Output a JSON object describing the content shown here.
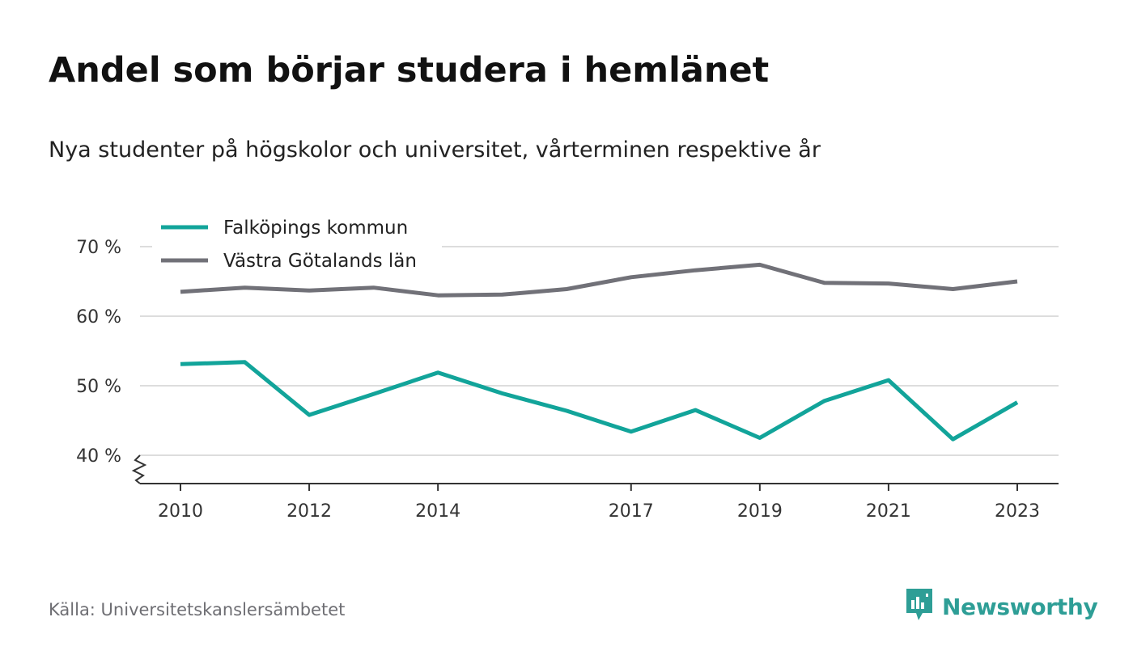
{
  "title": "Andel som börjar studera i hemlänet",
  "subtitle": "Nya studenter på högskolor och universitet, vårterminen respektive år",
  "source": "Källa: Universitetskanslersämbetet",
  "brand": {
    "name": "Newsworthy",
    "icon": "newsworthy-logo-icon"
  },
  "colors": {
    "series1": "#12a49a",
    "series2": "#717178",
    "grid": "#dddddd",
    "brand": "#2e9e96"
  },
  "chart_data": {
    "type": "line",
    "title": "Andel som börjar studera i hemlänet",
    "subtitle": "Nya studenter på högskolor och universitet, vårterminen respektive år",
    "xlabel": "",
    "ylabel": "",
    "x": [
      2010,
      2011,
      2012,
      2013,
      2014,
      2015,
      2016,
      2017,
      2018,
      2019,
      2020,
      2021,
      2022,
      2023
    ],
    "x_ticks": [
      2010,
      2012,
      2014,
      2017,
      2019,
      2021,
      2023
    ],
    "y_ticks": [
      40,
      50,
      60,
      70
    ],
    "y_tick_labels": [
      "40 %",
      "50 %",
      "60 %",
      "70 %"
    ],
    "ylim": [
      40,
      70
    ],
    "y_axis_break": true,
    "grid": "horizontal",
    "legend_position": "top-left",
    "series": [
      {
        "name": "Falköpings kommun",
        "color": "#12a49a",
        "values": [
          53.1,
          53.4,
          45.8,
          48.8,
          51.9,
          48.9,
          46.4,
          43.4,
          46.5,
          42.5,
          47.8,
          50.8,
          42.3,
          47.6
        ]
      },
      {
        "name": "Västra Götalands län",
        "color": "#717178",
        "values": [
          63.5,
          64.1,
          63.7,
          64.1,
          63.0,
          63.1,
          63.9,
          65.6,
          66.6,
          67.4,
          64.8,
          64.7,
          63.9,
          65.0
        ]
      }
    ]
  }
}
